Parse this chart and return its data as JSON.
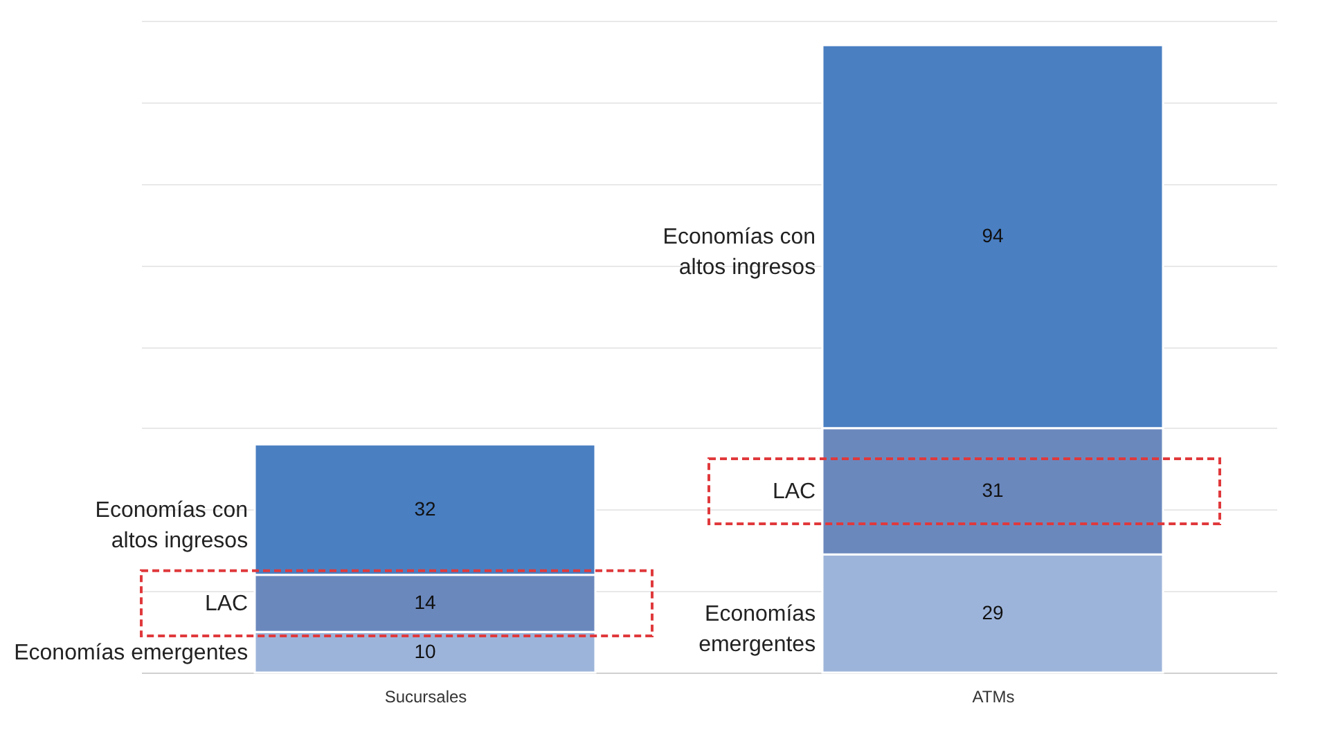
{
  "chart_data": {
    "type": "bar",
    "stacked": true,
    "categories": [
      "Sucursales",
      "ATMs"
    ],
    "series": [
      {
        "name": "Economías emergentes",
        "color": "#9db4da",
        "values": [
          10,
          29
        ]
      },
      {
        "name": "LAC",
        "color": "#6b88bd",
        "values": [
          14,
          31
        ]
      },
      {
        "name": "Economías con altos ingresos",
        "color": "#4a7fc2",
        "values": [
          32,
          94
        ]
      }
    ],
    "ylim": [
      0,
      160
    ],
    "yticks": [
      {
        "value": 0,
        "label": null
      },
      {
        "value": 20,
        "label": null
      },
      {
        "value": 40,
        "label": null
      },
      {
        "value": 60,
        "label": null
      },
      {
        "value": 80,
        "label": null
      },
      {
        "value": 100,
        "label": null
      },
      {
        "value": 120,
        "label": null
      },
      {
        "value": 140,
        "label": null
      },
      {
        "value": 160,
        "label": null
      }
    ],
    "grid": "y",
    "tick_labels": "x",
    "data_labels": true
  }
}
